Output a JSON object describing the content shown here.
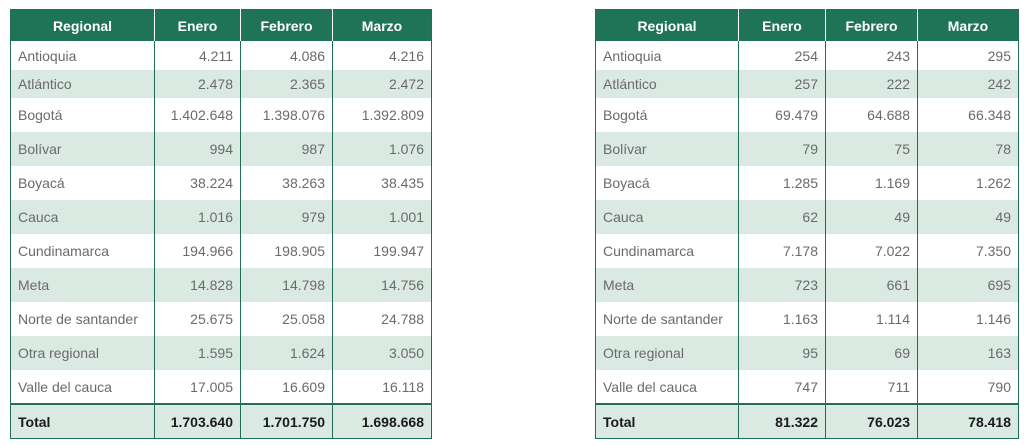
{
  "tables": [
    {
      "headers": [
        "Regional",
        "Enero",
        "Febrero",
        "Marzo"
      ],
      "rows": [
        [
          "Antioquia",
          "4.211",
          "4.086",
          "4.216"
        ],
        [
          "Atlántico",
          "2.478",
          "2.365",
          "2.472"
        ],
        [
          "Bogotá",
          "1.402.648",
          "1.398.076",
          "1.392.809"
        ],
        [
          "Bolívar",
          "994",
          "987",
          "1.076"
        ],
        [
          "Boyacá",
          "38.224",
          "38.263",
          "38.435"
        ],
        [
          "Cauca",
          "1.016",
          "979",
          "1.001"
        ],
        [
          "Cundinamarca",
          "194.966",
          "198.905",
          "199.947"
        ],
        [
          "Meta",
          "14.828",
          "14.798",
          "14.756"
        ],
        [
          "Norte de santander",
          "25.675",
          "25.058",
          "24.788"
        ],
        [
          "Otra regional",
          "1.595",
          "1.624",
          "3.050"
        ],
        [
          "Valle del cauca",
          "17.005",
          "16.609",
          "16.118"
        ]
      ],
      "total": [
        "Total",
        "1.703.640",
        "1.701.750",
        "1.698.668"
      ]
    },
    {
      "headers": [
        "Regional",
        "Enero",
        "Febrero",
        "Marzo"
      ],
      "rows": [
        [
          "Antioquia",
          "254",
          "243",
          "295"
        ],
        [
          "Atlántico",
          "257",
          "222",
          "242"
        ],
        [
          "Bogotá",
          "69.479",
          "64.688",
          "66.348"
        ],
        [
          "Bolívar",
          "79",
          "75",
          "78"
        ],
        [
          "Boyacá",
          "1.285",
          "1.169",
          "1.262"
        ],
        [
          "Cauca",
          "62",
          "49",
          "49"
        ],
        [
          "Cundinamarca",
          "7.178",
          "7.022",
          "7.350"
        ],
        [
          "Meta",
          "723",
          "661",
          "695"
        ],
        [
          "Norte de santander",
          "1.163",
          "1.114",
          "1.146"
        ],
        [
          "Otra regional",
          "95",
          "69",
          "163"
        ],
        [
          "Valle del cauca",
          "747",
          "711",
          "790"
        ]
      ],
      "total": [
        "Total",
        "81.322",
        "76.023",
        "78.418"
      ]
    }
  ],
  "colors": {
    "header_bg": "#1f7458",
    "stripe_bg": "#dbe9e3",
    "border": "#1f6e55"
  }
}
